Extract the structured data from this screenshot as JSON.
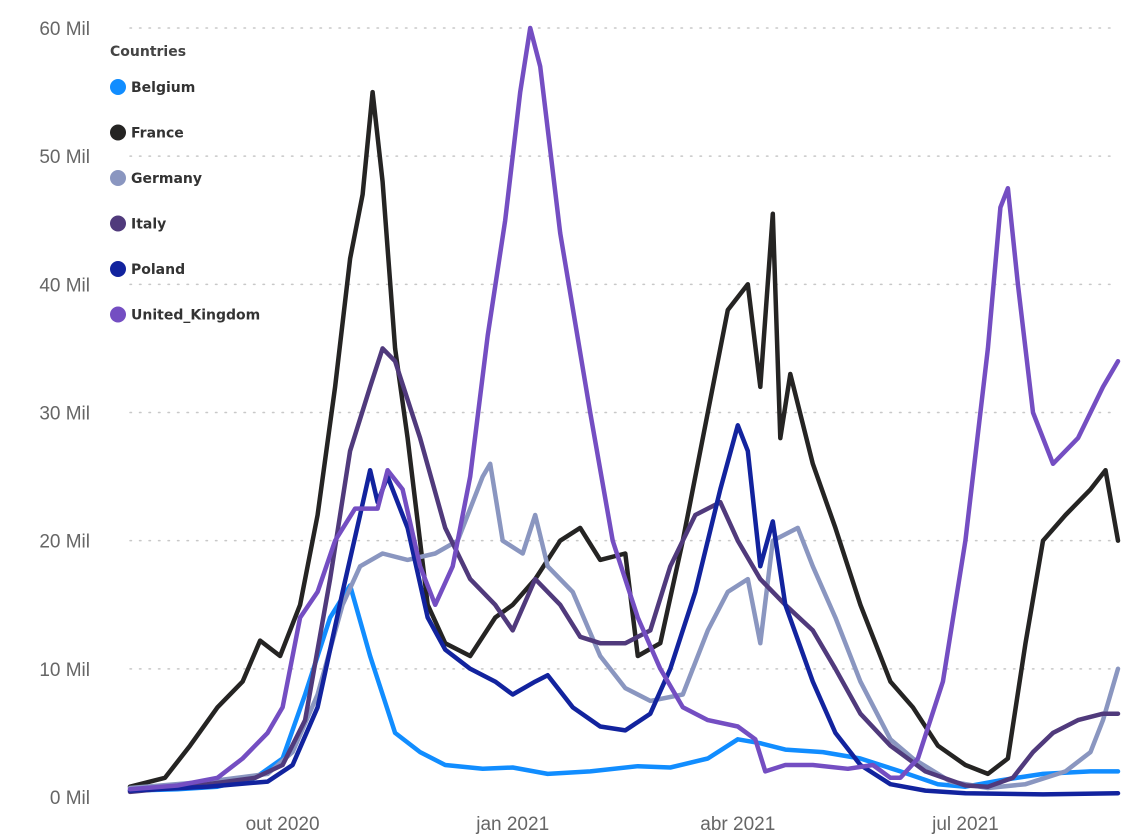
{
  "chart_data": {
    "type": "line",
    "title": "",
    "xlabel": "",
    "ylabel": "",
    "ylim": [
      0,
      60
    ],
    "y_ticks": [
      0,
      10,
      20,
      30,
      40,
      50,
      60
    ],
    "y_tick_labels": [
      "0 Mil",
      "10 Mil",
      "20 Mil",
      "30 Mil",
      "40 Mil",
      "50 Mil",
      "60 Mil"
    ],
    "xlim": [
      "2020-08-01",
      "2021-08-31"
    ],
    "x_ticks": [
      "2020-10-01",
      "2021-01-01",
      "2021-04-01",
      "2021-07-01"
    ],
    "x_tick_labels": [
      "out 2020",
      "jan 2021",
      "abr 2021",
      "jul 2021"
    ],
    "grid": "horizontal dotted",
    "legend": {
      "title": "Countries",
      "position": "top-left"
    },
    "series": [
      {
        "name": "Belgium",
        "color": "#118DFF",
        "points": [
          [
            "2020-08-01",
            0.5
          ],
          [
            "2020-08-20",
            0.6
          ],
          [
            "2020-09-05",
            0.8
          ],
          [
            "2020-09-20",
            1.5
          ],
          [
            "2020-10-01",
            3
          ],
          [
            "2020-10-10",
            8
          ],
          [
            "2020-10-20",
            14
          ],
          [
            "2020-10-28",
            16.5
          ],
          [
            "2020-11-05",
            11
          ],
          [
            "2020-11-15",
            5
          ],
          [
            "2020-11-25",
            3.5
          ],
          [
            "2020-12-05",
            2.5
          ],
          [
            "2020-12-20",
            2.2
          ],
          [
            "2021-01-01",
            2.3
          ],
          [
            "2021-01-15",
            1.8
          ],
          [
            "2021-02-01",
            2
          ],
          [
            "2021-02-20",
            2.4
          ],
          [
            "2021-03-05",
            2.3
          ],
          [
            "2021-03-20",
            3
          ],
          [
            "2021-04-01",
            4.5
          ],
          [
            "2021-04-10",
            4.2
          ],
          [
            "2021-04-20",
            3.7
          ],
          [
            "2021-05-05",
            3.5
          ],
          [
            "2021-05-20",
            3
          ],
          [
            "2021-06-05",
            2
          ],
          [
            "2021-06-20",
            1
          ],
          [
            "2021-07-01",
            0.8
          ],
          [
            "2021-07-15",
            1.3
          ],
          [
            "2021-08-01",
            1.8
          ],
          [
            "2021-08-20",
            2
          ],
          [
            "2021-08-31",
            2
          ]
        ]
      },
      {
        "name": "France",
        "color": "#252423",
        "points": [
          [
            "2020-08-01",
            0.8
          ],
          [
            "2020-08-15",
            1.5
          ],
          [
            "2020-08-25",
            4
          ],
          [
            "2020-09-05",
            7
          ],
          [
            "2020-09-15",
            9
          ],
          [
            "2020-09-22",
            12.2
          ],
          [
            "2020-09-30",
            11
          ],
          [
            "2020-10-08",
            15
          ],
          [
            "2020-10-15",
            22
          ],
          [
            "2020-10-22",
            32
          ],
          [
            "2020-10-28",
            42
          ],
          [
            "2020-11-02",
            47
          ],
          [
            "2020-11-06",
            55
          ],
          [
            "2020-11-10",
            48
          ],
          [
            "2020-11-15",
            35
          ],
          [
            "2020-11-20",
            28
          ],
          [
            "2020-11-28",
            15
          ],
          [
            "2020-12-05",
            12
          ],
          [
            "2020-12-15",
            11
          ],
          [
            "2020-12-25",
            14
          ],
          [
            "2021-01-01",
            15
          ],
          [
            "2021-01-10",
            17
          ],
          [
            "2021-01-20",
            20
          ],
          [
            "2021-01-28",
            21
          ],
          [
            "2021-02-05",
            18.5
          ],
          [
            "2021-02-15",
            19
          ],
          [
            "2021-02-20",
            11
          ],
          [
            "2021-03-01",
            12
          ],
          [
            "2021-03-10",
            20
          ],
          [
            "2021-03-20",
            30
          ],
          [
            "2021-03-28",
            38
          ],
          [
            "2021-04-05",
            40
          ],
          [
            "2021-04-10",
            32
          ],
          [
            "2021-04-15",
            45.5
          ],
          [
            "2021-04-18",
            28
          ],
          [
            "2021-04-22",
            33
          ],
          [
            "2021-05-01",
            26
          ],
          [
            "2021-05-10",
            21
          ],
          [
            "2021-05-20",
            15
          ],
          [
            "2021-06-01",
            9
          ],
          [
            "2021-06-10",
            7
          ],
          [
            "2021-06-20",
            4
          ],
          [
            "2021-07-01",
            2.5
          ],
          [
            "2021-07-10",
            1.8
          ],
          [
            "2021-07-18",
            3
          ],
          [
            "2021-07-25",
            12
          ],
          [
            "2021-08-01",
            20
          ],
          [
            "2021-08-10",
            22
          ],
          [
            "2021-08-20",
            24
          ],
          [
            "2021-08-26",
            25.5
          ],
          [
            "2021-08-31",
            20
          ]
        ]
      },
      {
        "name": "Germany",
        "color": "#8A96C0",
        "points": [
          [
            "2020-08-01",
            0.7
          ],
          [
            "2020-09-01",
            1.2
          ],
          [
            "2020-09-25",
            1.8
          ],
          [
            "2020-10-05",
            3.5
          ],
          [
            "2020-10-15",
            8
          ],
          [
            "2020-10-25",
            15
          ],
          [
            "2020-11-01",
            18
          ],
          [
            "2020-11-10",
            19
          ],
          [
            "2020-11-20",
            18.5
          ],
          [
            "2020-12-01",
            19
          ],
          [
            "2020-12-10",
            20
          ],
          [
            "2020-12-20",
            25
          ],
          [
            "2020-12-23",
            26
          ],
          [
            "2020-12-28",
            20
          ],
          [
            "2021-01-05",
            19
          ],
          [
            "2021-01-10",
            22
          ],
          [
            "2021-01-15",
            18
          ],
          [
            "2021-01-25",
            16
          ],
          [
            "2021-02-05",
            11
          ],
          [
            "2021-02-15",
            8.5
          ],
          [
            "2021-02-25",
            7.5
          ],
          [
            "2021-03-10",
            8
          ],
          [
            "2021-03-20",
            13
          ],
          [
            "2021-03-28",
            16
          ],
          [
            "2021-04-05",
            17
          ],
          [
            "2021-04-10",
            12
          ],
          [
            "2021-04-15",
            20
          ],
          [
            "2021-04-25",
            21
          ],
          [
            "2021-05-01",
            18
          ],
          [
            "2021-05-10",
            14
          ],
          [
            "2021-05-20",
            9
          ],
          [
            "2021-06-01",
            4.5
          ],
          [
            "2021-06-10",
            3
          ],
          [
            "2021-06-25",
            1.2
          ],
          [
            "2021-07-10",
            0.7
          ],
          [
            "2021-07-25",
            1
          ],
          [
            "2021-08-10",
            2
          ],
          [
            "2021-08-20",
            3.5
          ],
          [
            "2021-08-25",
            6
          ],
          [
            "2021-08-31",
            10
          ]
        ]
      },
      {
        "name": "Italy",
        "color": "#503A7C",
        "points": [
          [
            "2020-08-01",
            0.4
          ],
          [
            "2020-09-01",
            1
          ],
          [
            "2020-09-20",
            1.5
          ],
          [
            "2020-10-01",
            2.5
          ],
          [
            "2020-10-10",
            6
          ],
          [
            "2020-10-20",
            17
          ],
          [
            "2020-10-28",
            27
          ],
          [
            "2020-11-05",
            32
          ],
          [
            "2020-11-10",
            35
          ],
          [
            "2020-11-15",
            34
          ],
          [
            "2020-11-25",
            28
          ],
          [
            "2020-12-05",
            21
          ],
          [
            "2020-12-15",
            17
          ],
          [
            "2020-12-25",
            15
          ],
          [
            "2021-01-01",
            13
          ],
          [
            "2021-01-10",
            17
          ],
          [
            "2021-01-20",
            15
          ],
          [
            "2021-01-28",
            12.5
          ],
          [
            "2021-02-05",
            12
          ],
          [
            "2021-02-15",
            12
          ],
          [
            "2021-02-25",
            13
          ],
          [
            "2021-03-05",
            18
          ],
          [
            "2021-03-15",
            22
          ],
          [
            "2021-03-25",
            23
          ],
          [
            "2021-04-01",
            20
          ],
          [
            "2021-04-10",
            17
          ],
          [
            "2021-04-20",
            15
          ],
          [
            "2021-05-01",
            13
          ],
          [
            "2021-05-10",
            10
          ],
          [
            "2021-05-20",
            6.5
          ],
          [
            "2021-06-01",
            4
          ],
          [
            "2021-06-15",
            2
          ],
          [
            "2021-07-01",
            0.9
          ],
          [
            "2021-07-10",
            0.8
          ],
          [
            "2021-07-20",
            1.5
          ],
          [
            "2021-07-28",
            3.5
          ],
          [
            "2021-08-05",
            5
          ],
          [
            "2021-08-15",
            6
          ],
          [
            "2021-08-25",
            6.5
          ],
          [
            "2021-08-31",
            6.5
          ]
        ]
      },
      {
        "name": "Poland",
        "color": "#12239E",
        "points": [
          [
            "2020-08-01",
            0.5
          ],
          [
            "2020-09-01",
            0.8
          ],
          [
            "2020-09-25",
            1.2
          ],
          [
            "2020-10-05",
            2.5
          ],
          [
            "2020-10-15",
            7
          ],
          [
            "2020-10-25",
            16
          ],
          [
            "2020-11-01",
            22
          ],
          [
            "2020-11-05",
            25.5
          ],
          [
            "2020-11-08",
            23
          ],
          [
            "2020-11-12",
            25
          ],
          [
            "2020-11-20",
            21
          ],
          [
            "2020-11-28",
            14
          ],
          [
            "2020-12-05",
            11.5
          ],
          [
            "2020-12-15",
            10
          ],
          [
            "2020-12-25",
            9
          ],
          [
            "2021-01-01",
            8
          ],
          [
            "2021-01-10",
            9
          ],
          [
            "2021-01-15",
            9.5
          ],
          [
            "2021-01-25",
            7
          ],
          [
            "2021-02-05",
            5.5
          ],
          [
            "2021-02-15",
            5.2
          ],
          [
            "2021-02-25",
            6.5
          ],
          [
            "2021-03-05",
            10
          ],
          [
            "2021-03-15",
            16
          ],
          [
            "2021-03-25",
            24
          ],
          [
            "2021-04-01",
            29
          ],
          [
            "2021-04-05",
            27
          ],
          [
            "2021-04-10",
            18
          ],
          [
            "2021-04-15",
            21.5
          ],
          [
            "2021-04-20",
            15
          ],
          [
            "2021-05-01",
            9
          ],
          [
            "2021-05-10",
            5
          ],
          [
            "2021-05-20",
            2.5
          ],
          [
            "2021-06-01",
            1
          ],
          [
            "2021-06-15",
            0.5
          ],
          [
            "2021-07-01",
            0.3
          ],
          [
            "2021-08-01",
            0.2
          ],
          [
            "2021-08-31",
            0.3
          ]
        ]
      },
      {
        "name": "United_Kingdom",
        "color": "#744EC2",
        "points": [
          [
            "2020-08-01",
            0.6
          ],
          [
            "2020-08-20",
            0.9
          ],
          [
            "2020-09-05",
            1.5
          ],
          [
            "2020-09-15",
            3
          ],
          [
            "2020-09-25",
            5
          ],
          [
            "2020-10-01",
            7
          ],
          [
            "2020-10-08",
            14
          ],
          [
            "2020-10-15",
            16
          ],
          [
            "2020-10-22",
            20
          ],
          [
            "2020-10-30",
            22.5
          ],
          [
            "2020-11-08",
            22.5
          ],
          [
            "2020-11-12",
            25.5
          ],
          [
            "2020-11-18",
            24
          ],
          [
            "2020-11-25",
            18
          ],
          [
            "2020-12-01",
            15
          ],
          [
            "2020-12-08",
            18
          ],
          [
            "2020-12-15",
            25
          ],
          [
            "2020-12-22",
            36
          ],
          [
            "2020-12-29",
            45
          ],
          [
            "2021-01-04",
            55
          ],
          [
            "2021-01-08",
            60
          ],
          [
            "2021-01-12",
            57
          ],
          [
            "2021-01-20",
            44
          ],
          [
            "2021-02-01",
            30
          ],
          [
            "2021-02-10",
            20
          ],
          [
            "2021-02-20",
            14
          ],
          [
            "2021-03-01",
            10
          ],
          [
            "2021-03-10",
            7
          ],
          [
            "2021-03-20",
            6
          ],
          [
            "2021-04-01",
            5.5
          ],
          [
            "2021-04-08",
            4.5
          ],
          [
            "2021-04-12",
            2
          ],
          [
            "2021-04-20",
            2.5
          ],
          [
            "2021-05-01",
            2.5
          ],
          [
            "2021-05-15",
            2.2
          ],
          [
            "2021-05-25",
            2.5
          ],
          [
            "2021-06-01",
            1.5
          ],
          [
            "2021-06-05",
            1.5
          ],
          [
            "2021-06-12",
            3
          ],
          [
            "2021-06-22",
            9
          ],
          [
            "2021-07-01",
            20
          ],
          [
            "2021-07-10",
            35
          ],
          [
            "2021-07-15",
            46
          ],
          [
            "2021-07-18",
            47.5
          ],
          [
            "2021-07-22",
            40
          ],
          [
            "2021-07-28",
            30
          ],
          [
            "2021-08-05",
            26
          ],
          [
            "2021-08-15",
            28
          ],
          [
            "2021-08-25",
            32
          ],
          [
            "2021-08-31",
            34
          ]
        ]
      }
    ]
  }
}
